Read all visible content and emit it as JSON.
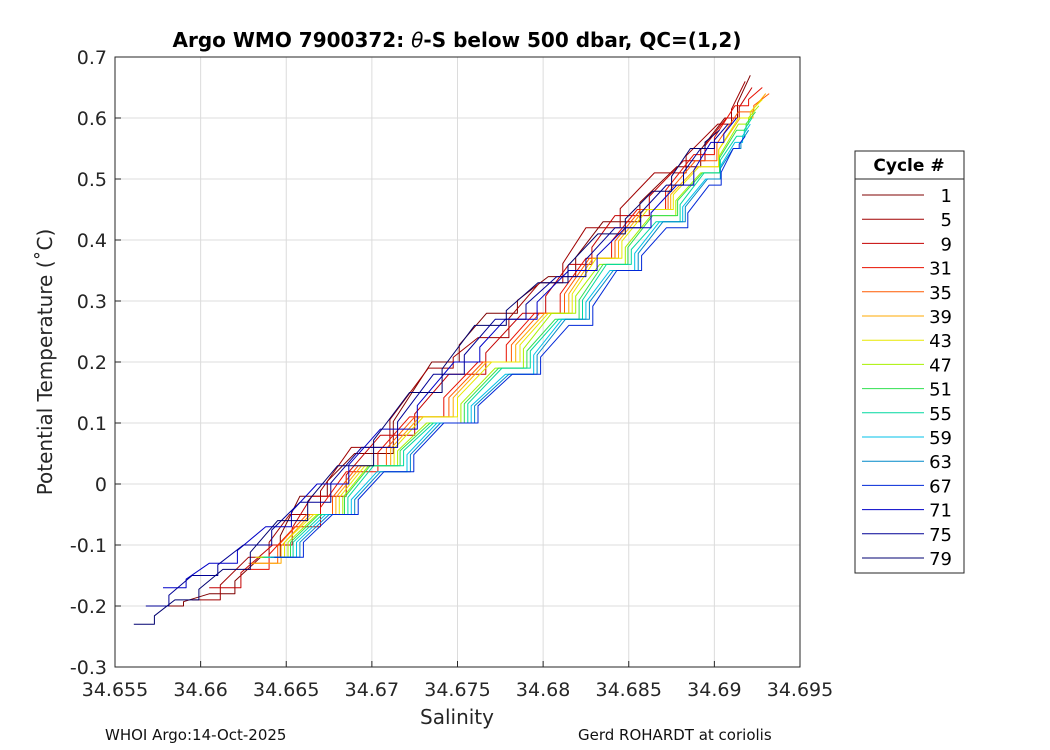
{
  "chart_data": {
    "type": "line",
    "title_prefix": "Argo WMO 7900372: ",
    "title_theta": "θ",
    "title_suffix": "-S below 500 dbar,  QC=(1,2)",
    "xlabel": "Salinity",
    "ylabel": "Potential Temperature (˚C)",
    "xlim": [
      34.655,
      34.695
    ],
    "ylim": [
      -0.3,
      0.7
    ],
    "xticks": [
      34.655,
      34.66,
      34.665,
      34.67,
      34.675,
      34.68,
      34.685,
      34.69,
      34.695
    ],
    "xtick_labels": [
      "34.655",
      "34.66",
      "34.665",
      "34.67",
      "34.675",
      "34.68",
      "34.685",
      "34.69",
      "34.695"
    ],
    "yticks": [
      0.7,
      0.6,
      0.5,
      0.4,
      0.3,
      0.2,
      0.1,
      0,
      -0.1,
      -0.2,
      -0.3
    ],
    "ytick_labels": [
      "0.7",
      "0.6",
      "0.5",
      "0.4",
      "0.3",
      "0.2",
      "0.1",
      "0",
      "-0.1",
      "-0.2",
      "-0.3"
    ],
    "grid": true,
    "legend_title": "Cycle #",
    "legend_position": "right",
    "series": [
      {
        "name": "1",
        "color": "#7f0000",
        "points": [
          [
            34.6575,
            -0.2
          ],
          [
            34.6605,
            -0.18
          ],
          [
            34.6635,
            -0.12
          ],
          [
            34.6658,
            -0.02
          ],
          [
            34.669,
            0.05
          ],
          [
            34.6735,
            0.2
          ],
          [
            34.6767,
            0.28
          ],
          [
            34.6803,
            0.34
          ],
          [
            34.6835,
            0.43
          ],
          [
            34.6878,
            0.52
          ],
          [
            34.6906,
            0.6
          ],
          [
            34.6921,
            0.67
          ]
        ]
      },
      {
        "name": "5",
        "color": "#a00000",
        "points": [
          [
            34.6595,
            -0.19
          ],
          [
            34.6628,
            -0.12
          ],
          [
            34.6652,
            -0.05
          ],
          [
            34.6688,
            0.06
          ],
          [
            34.6733,
            0.19
          ],
          [
            34.6762,
            0.24
          ],
          [
            34.6798,
            0.33
          ],
          [
            34.6825,
            0.42
          ],
          [
            34.6865,
            0.51
          ],
          [
            34.6902,
            0.59
          ],
          [
            34.6918,
            0.66
          ]
        ]
      },
      {
        "name": "9",
        "color": "#c40000",
        "points": [
          [
            34.6605,
            -0.17
          ],
          [
            34.6642,
            -0.1
          ],
          [
            34.6665,
            -0.02
          ],
          [
            34.6705,
            0.08
          ],
          [
            34.6745,
            0.18
          ],
          [
            34.6788,
            0.28
          ],
          [
            34.6815,
            0.36
          ],
          [
            34.6842,
            0.44
          ],
          [
            34.6882,
            0.53
          ],
          [
            34.6907,
            0.6
          ],
          [
            34.6922,
            0.65
          ]
        ]
      },
      {
        "name": "31",
        "color": "#e81000",
        "points": [
          [
            34.6625,
            -0.14
          ],
          [
            34.6655,
            -0.07
          ],
          [
            34.6685,
            0.02
          ],
          [
            34.6722,
            0.11
          ],
          [
            34.6762,
            0.2
          ],
          [
            34.6795,
            0.28
          ],
          [
            34.6825,
            0.37
          ],
          [
            34.6855,
            0.45
          ],
          [
            34.6888,
            0.54
          ],
          [
            34.6912,
            0.62
          ],
          [
            34.6928,
            0.65
          ]
        ]
      },
      {
        "name": "35",
        "color": "#ff5a00",
        "points": [
          [
            34.6628,
            -0.13
          ],
          [
            34.6662,
            -0.05
          ],
          [
            34.6692,
            0.03
          ],
          [
            34.6725,
            0.11
          ],
          [
            34.6765,
            0.2
          ],
          [
            34.6798,
            0.28
          ],
          [
            34.6827,
            0.37
          ],
          [
            34.6857,
            0.45
          ],
          [
            34.6889,
            0.53
          ],
          [
            34.6914,
            0.61
          ],
          [
            34.6932,
            0.64
          ]
        ]
      },
      {
        "name": "39",
        "color": "#ffaa00",
        "points": [
          [
            34.663,
            -0.13
          ],
          [
            34.6664,
            -0.05
          ],
          [
            34.6694,
            0.03
          ],
          [
            34.6728,
            0.11
          ],
          [
            34.6767,
            0.2
          ],
          [
            34.6801,
            0.28
          ],
          [
            34.6829,
            0.37
          ],
          [
            34.6859,
            0.45
          ],
          [
            34.689,
            0.52
          ],
          [
            34.6915,
            0.6
          ],
          [
            34.693,
            0.64
          ]
        ]
      },
      {
        "name": "43",
        "color": "#e8e800",
        "points": [
          [
            34.6632,
            -0.12
          ],
          [
            34.6666,
            -0.05
          ],
          [
            34.6696,
            0.03
          ],
          [
            34.673,
            0.11
          ],
          [
            34.677,
            0.2
          ],
          [
            34.6803,
            0.28
          ],
          [
            34.6831,
            0.37
          ],
          [
            34.6861,
            0.45
          ],
          [
            34.6891,
            0.52
          ],
          [
            34.6914,
            0.6
          ],
          [
            34.6928,
            0.63
          ]
        ]
      },
      {
        "name": "47",
        "color": "#a8f000",
        "points": [
          [
            34.6634,
            -0.12
          ],
          [
            34.6668,
            -0.05
          ],
          [
            34.6698,
            0.03
          ],
          [
            34.6732,
            0.1
          ],
          [
            34.6772,
            0.19
          ],
          [
            34.6805,
            0.28
          ],
          [
            34.6833,
            0.36
          ],
          [
            34.6863,
            0.44
          ],
          [
            34.6892,
            0.51
          ],
          [
            34.6914,
            0.59
          ],
          [
            34.6926,
            0.62
          ]
        ]
      },
      {
        "name": "51",
        "color": "#30e050",
        "points": [
          [
            34.6636,
            -0.12
          ],
          [
            34.6669,
            -0.05
          ],
          [
            34.6699,
            0.03
          ],
          [
            34.6734,
            0.1
          ],
          [
            34.6774,
            0.19
          ],
          [
            34.6807,
            0.27
          ],
          [
            34.6835,
            0.36
          ],
          [
            34.6864,
            0.44
          ],
          [
            34.6893,
            0.51
          ],
          [
            34.6913,
            0.58
          ],
          [
            34.6924,
            0.61
          ]
        ]
      },
      {
        "name": "55",
        "color": "#00d8a0",
        "points": [
          [
            34.6637,
            -0.12
          ],
          [
            34.6671,
            -0.05
          ],
          [
            34.6701,
            0.03
          ],
          [
            34.6736,
            0.1
          ],
          [
            34.6776,
            0.19
          ],
          [
            34.6809,
            0.27
          ],
          [
            34.6837,
            0.36
          ],
          [
            34.6866,
            0.43
          ],
          [
            34.6894,
            0.51
          ],
          [
            34.6913,
            0.57
          ],
          [
            34.6922,
            0.6
          ]
        ]
      },
      {
        "name": "59",
        "color": "#00c0e8",
        "points": [
          [
            34.6639,
            -0.12
          ],
          [
            34.6673,
            -0.05
          ],
          [
            34.6703,
            0.02
          ],
          [
            34.6738,
            0.1
          ],
          [
            34.6778,
            0.18
          ],
          [
            34.6811,
            0.27
          ],
          [
            34.6839,
            0.35
          ],
          [
            34.6868,
            0.43
          ],
          [
            34.6895,
            0.5
          ],
          [
            34.6912,
            0.56
          ],
          [
            34.6921,
            0.59
          ]
        ]
      },
      {
        "name": "63",
        "color": "#0088c8",
        "points": [
          [
            34.6641,
            -0.12
          ],
          [
            34.6675,
            -0.05
          ],
          [
            34.6705,
            0.02
          ],
          [
            34.674,
            0.1
          ],
          [
            34.678,
            0.18
          ],
          [
            34.6813,
            0.27
          ],
          [
            34.6841,
            0.35
          ],
          [
            34.687,
            0.43
          ],
          [
            34.6896,
            0.5
          ],
          [
            34.6911,
            0.55
          ],
          [
            34.692,
            0.58
          ]
        ]
      },
      {
        "name": "67",
        "color": "#0028d8",
        "points": [
          [
            34.6643,
            -0.12
          ],
          [
            34.6677,
            -0.05
          ],
          [
            34.6707,
            0.02
          ],
          [
            34.6742,
            0.1
          ],
          [
            34.6782,
            0.18
          ],
          [
            34.6815,
            0.26
          ],
          [
            34.6843,
            0.35
          ],
          [
            34.6872,
            0.42
          ],
          [
            34.6897,
            0.49
          ],
          [
            34.6911,
            0.55
          ],
          [
            34.6918,
            0.57
          ]
        ]
      },
      {
        "name": "71",
        "color": "#0000c8",
        "points": [
          [
            34.6578,
            -0.17
          ],
          [
            34.6605,
            -0.13
          ],
          [
            34.6638,
            -0.07
          ],
          [
            34.6668,
            0.0
          ],
          [
            34.6705,
            0.09
          ],
          [
            34.6748,
            0.2
          ],
          [
            34.6778,
            0.27
          ],
          [
            34.6815,
            0.35
          ],
          [
            34.6848,
            0.42
          ],
          [
            34.6878,
            0.49
          ],
          [
            34.6898,
            0.56
          ],
          [
            34.6913,
            0.6
          ]
        ]
      },
      {
        "name": "75",
        "color": "#000096",
        "points": [
          [
            34.6568,
            -0.2
          ],
          [
            34.6595,
            -0.15
          ],
          [
            34.6625,
            -0.1
          ],
          [
            34.6658,
            -0.03
          ],
          [
            34.6694,
            0.06
          ],
          [
            34.6736,
            0.18
          ],
          [
            34.6772,
            0.27
          ],
          [
            34.6808,
            0.34
          ],
          [
            34.6842,
            0.42
          ],
          [
            34.6872,
            0.49
          ],
          [
            34.6892,
            0.55
          ],
          [
            34.6908,
            0.59
          ]
        ]
      },
      {
        "name": "79",
        "color": "#000070",
        "points": [
          [
            34.6561,
            -0.23
          ],
          [
            34.6585,
            -0.19
          ],
          [
            34.6613,
            -0.14
          ],
          [
            34.6645,
            -0.06
          ],
          [
            34.668,
            0.03
          ],
          [
            34.6722,
            0.15
          ],
          [
            34.676,
            0.26
          ],
          [
            34.6797,
            0.33
          ],
          [
            34.6832,
            0.41
          ],
          [
            34.6864,
            0.48
          ],
          [
            34.6886,
            0.55
          ],
          [
            34.6903,
            0.58
          ]
        ]
      }
    ]
  },
  "footer": {
    "left": "WHOI Argo:14-Oct-2025",
    "right": "Gerd ROHARDT at coriolis"
  }
}
